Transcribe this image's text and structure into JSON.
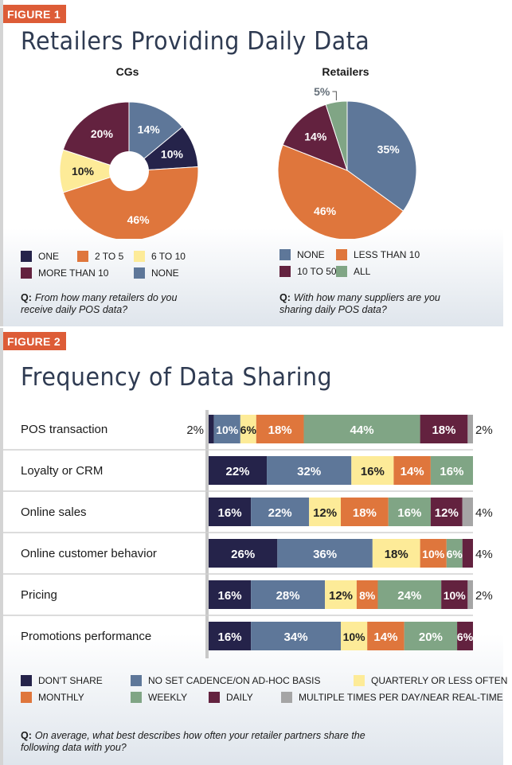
{
  "figure1": {
    "label": "FIGURE 1",
    "title": "Retailers Providing Daily Data"
  },
  "figure2": {
    "label": "FIGURE 2",
    "title": "Frequency of Data Sharing"
  },
  "chart_data": [
    {
      "type": "pie",
      "title": "CGs",
      "slices": [
        {
          "label": "NONE",
          "value": 14,
          "color": "#5e7799"
        },
        {
          "label": "ONE",
          "value": 10,
          "color": "#25234a"
        },
        {
          "label": "2 TO 5",
          "value": 46,
          "color": "#df763c"
        },
        {
          "label": "6 TO 10",
          "value": 10,
          "color": "#fdeb98"
        },
        {
          "label": "MORE THAN 10",
          "value": 20,
          "color": "#63223f"
        }
      ],
      "legend": [
        "ONE",
        "2 TO 5",
        "6 TO 10",
        "MORE THAN 10",
        "NONE"
      ],
      "question": "From how many retailers do you receive daily POS data?"
    },
    {
      "type": "pie",
      "title": "Retailers",
      "slices": [
        {
          "label": "NONE",
          "value": 35,
          "color": "#5e7799"
        },
        {
          "label": "LESS THAN 10",
          "value": 46,
          "color": "#df763c"
        },
        {
          "label": "10 TO 50",
          "value": 14,
          "color": "#63223f"
        },
        {
          "label": "ALL",
          "value": 5,
          "color": "#80a585"
        }
      ],
      "legend": [
        "NONE",
        "LESS THAN 10",
        "10 TO 50",
        "ALL"
      ],
      "question": "With how many suppliers are you sharing daily POS data?"
    },
    {
      "type": "bar",
      "stacked": true,
      "orientation": "horizontal",
      "categories": [
        "POS transaction",
        "Loyalty or CRM",
        "Online sales",
        "Online customer behavior",
        "Pricing",
        "Promotions performance"
      ],
      "series": [
        {
          "name": "DON'T SHARE",
          "color": "#25234a",
          "values": [
            2,
            22,
            16,
            26,
            16,
            16
          ]
        },
        {
          "name": "NO SET CADENCE/ON AD-HOC BASIS",
          "color": "#5e7799",
          "values": [
            10,
            32,
            22,
            36,
            28,
            34
          ]
        },
        {
          "name": "QUARTERLY OR LESS OFTEN",
          "color": "#fdeb98",
          "values": [
            6,
            16,
            12,
            18,
            12,
            10
          ]
        },
        {
          "name": "MONTHLY",
          "color": "#df763c",
          "values": [
            18,
            14,
            18,
            10,
            8,
            14
          ]
        },
        {
          "name": "WEEKLY",
          "color": "#80a585",
          "values": [
            44,
            16,
            16,
            6,
            24,
            20
          ]
        },
        {
          "name": "DAILY",
          "color": "#63223f",
          "values": [
            18,
            0,
            12,
            4,
            10,
            6
          ]
        },
        {
          "name": "MULTIPLE TIMES PER DAY/NEAR REAL-TIME",
          "color": "#a5a5a5",
          "values": [
            2,
            0,
            4,
            0,
            2,
            0
          ]
        }
      ],
      "unit": "%",
      "question": "On average, what best describes how often your retailer partners share the following data with you?"
    }
  ]
}
